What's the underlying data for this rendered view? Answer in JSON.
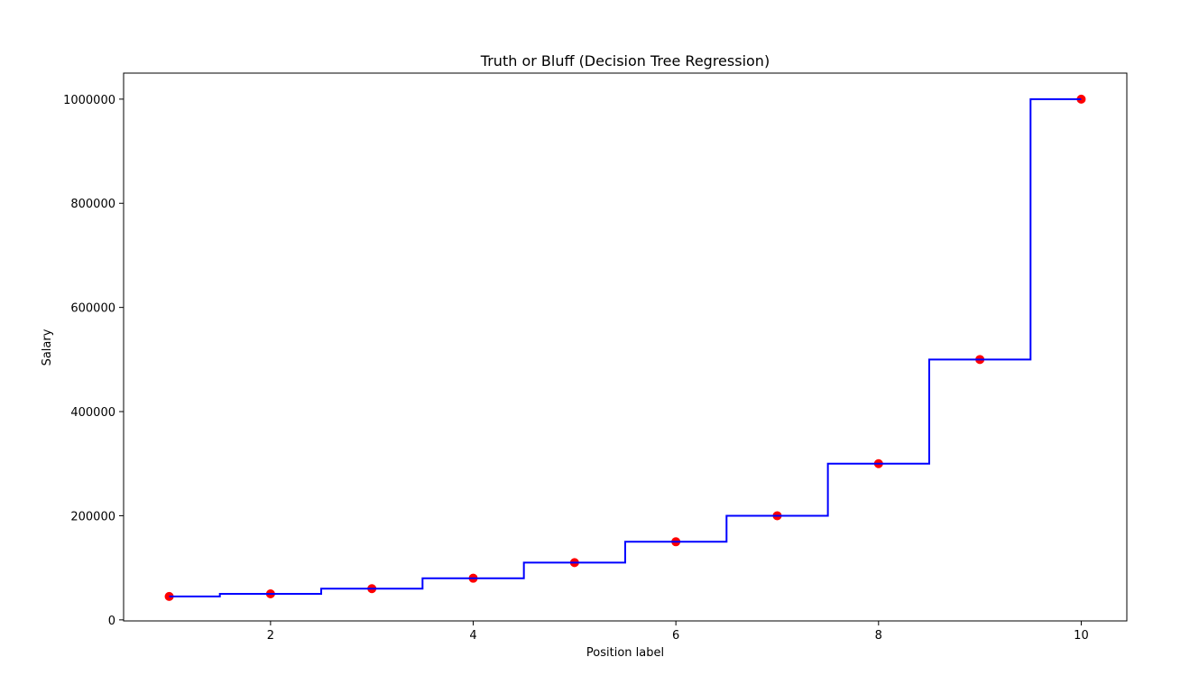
{
  "chart_data": {
    "type": "scatter",
    "title": "Truth or Bluff (Decision Tree Regression)",
    "xlabel": "Position label",
    "ylabel": "Salary",
    "xlim": [
      0.55,
      10.45
    ],
    "ylim": [
      -2000,
      1050000
    ],
    "xticks": [
      2,
      4,
      6,
      8,
      10
    ],
    "xtick_labels": [
      "2",
      "4",
      "6",
      "8",
      "10"
    ],
    "yticks": [
      0,
      200000,
      400000,
      600000,
      800000,
      1000000
    ],
    "ytick_labels": [
      "0",
      "200000",
      "400000",
      "600000",
      "800000",
      "1000000"
    ],
    "grid": false,
    "legend": "none",
    "series": [
      {
        "type": "scatter",
        "color": "#ff0000",
        "x": [
          1,
          2,
          3,
          4,
          5,
          6,
          7,
          8,
          9,
          10
        ],
        "y": [
          45000,
          50000,
          60000,
          80000,
          110000,
          150000,
          200000,
          300000,
          500000,
          1000000
        ]
      },
      {
        "type": "step-line",
        "color": "#0000ff",
        "x": [
          1,
          1.5,
          1.5,
          2.5,
          2.5,
          3.5,
          3.5,
          4.5,
          4.5,
          5.5,
          5.5,
          6.5,
          6.5,
          7.5,
          7.5,
          8.5,
          8.5,
          9.5,
          9.5,
          10
        ],
        "y": [
          45000,
          45000,
          50000,
          50000,
          60000,
          60000,
          80000,
          80000,
          110000,
          110000,
          150000,
          150000,
          200000,
          200000,
          300000,
          300000,
          500000,
          500000,
          1000000,
          1000000
        ]
      }
    ]
  }
}
